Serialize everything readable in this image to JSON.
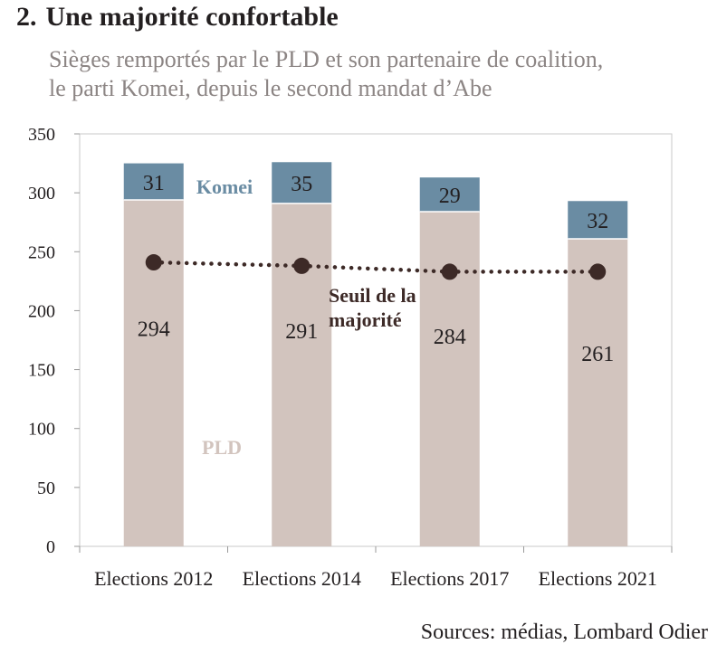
{
  "header": {
    "number": "2.",
    "title": "Une majorité confortable",
    "subtitle_line1": "Sièges remportés par le PLD et son partenaire de coalition,",
    "subtitle_line2": "le parti Komei, depuis le second mandat d’Abe"
  },
  "chart_data": {
    "type": "bar",
    "stacked": true,
    "categories": [
      "Elections 2012",
      "Elections 2014",
      "Elections 2017",
      "Elections 2021"
    ],
    "series": [
      {
        "name": "PLD",
        "values": [
          294,
          291,
          284,
          261
        ],
        "color": "#d2c4be"
      },
      {
        "name": "Komei",
        "values": [
          31,
          35,
          29,
          32
        ],
        "color": "#6a8ca3"
      }
    ],
    "line": {
      "name": "Seuil de la majorité",
      "values": [
        241,
        238,
        233,
        233
      ],
      "color": "#3d2a27",
      "style": "dotted"
    },
    "ylim": [
      0,
      350
    ],
    "yticks": [
      0,
      50,
      100,
      150,
      200,
      250,
      300,
      350
    ],
    "legend_labels": {
      "komei": "Komei",
      "pld": "PLD",
      "threshold_line1": "Seuil de la",
      "threshold_line2": "majorité"
    },
    "grid": false
  },
  "footer": {
    "source": "Sources: médias, Lombard Odier"
  }
}
